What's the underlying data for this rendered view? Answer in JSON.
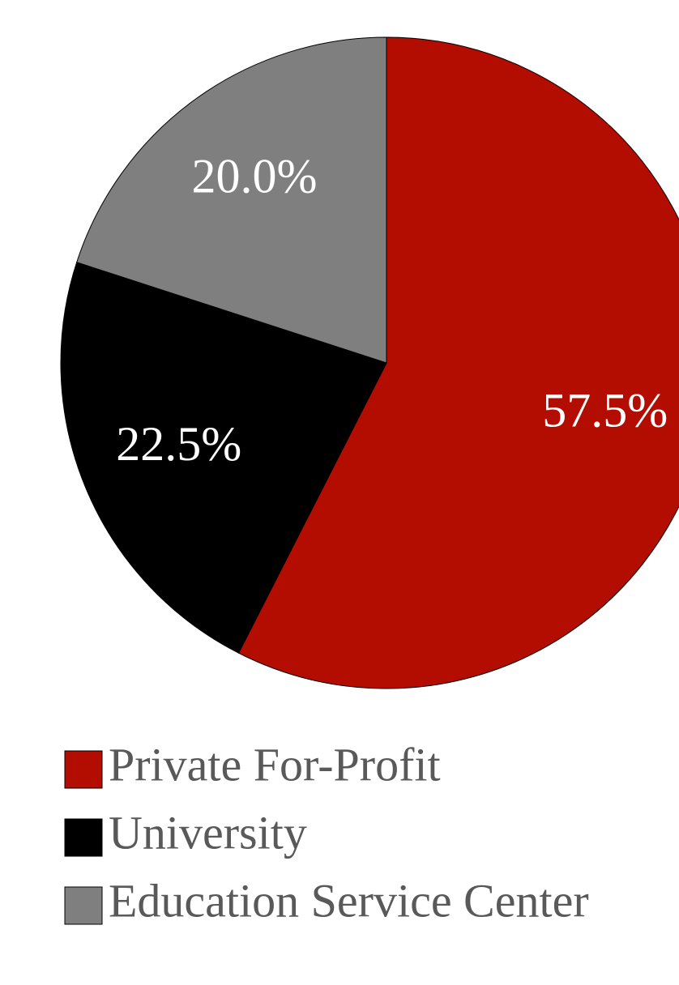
{
  "chart_data": {
    "type": "pie",
    "categories": [
      "Private For-Profit",
      "University",
      "Education Service Center"
    ],
    "values": [
      57.5,
      22.5,
      20.0
    ],
    "value_labels": [
      "57.5%",
      "22.5%",
      "20.0%"
    ],
    "colors": [
      "#b30c00",
      "#000000",
      "#7f7f7f"
    ],
    "legend": "bottom"
  }
}
